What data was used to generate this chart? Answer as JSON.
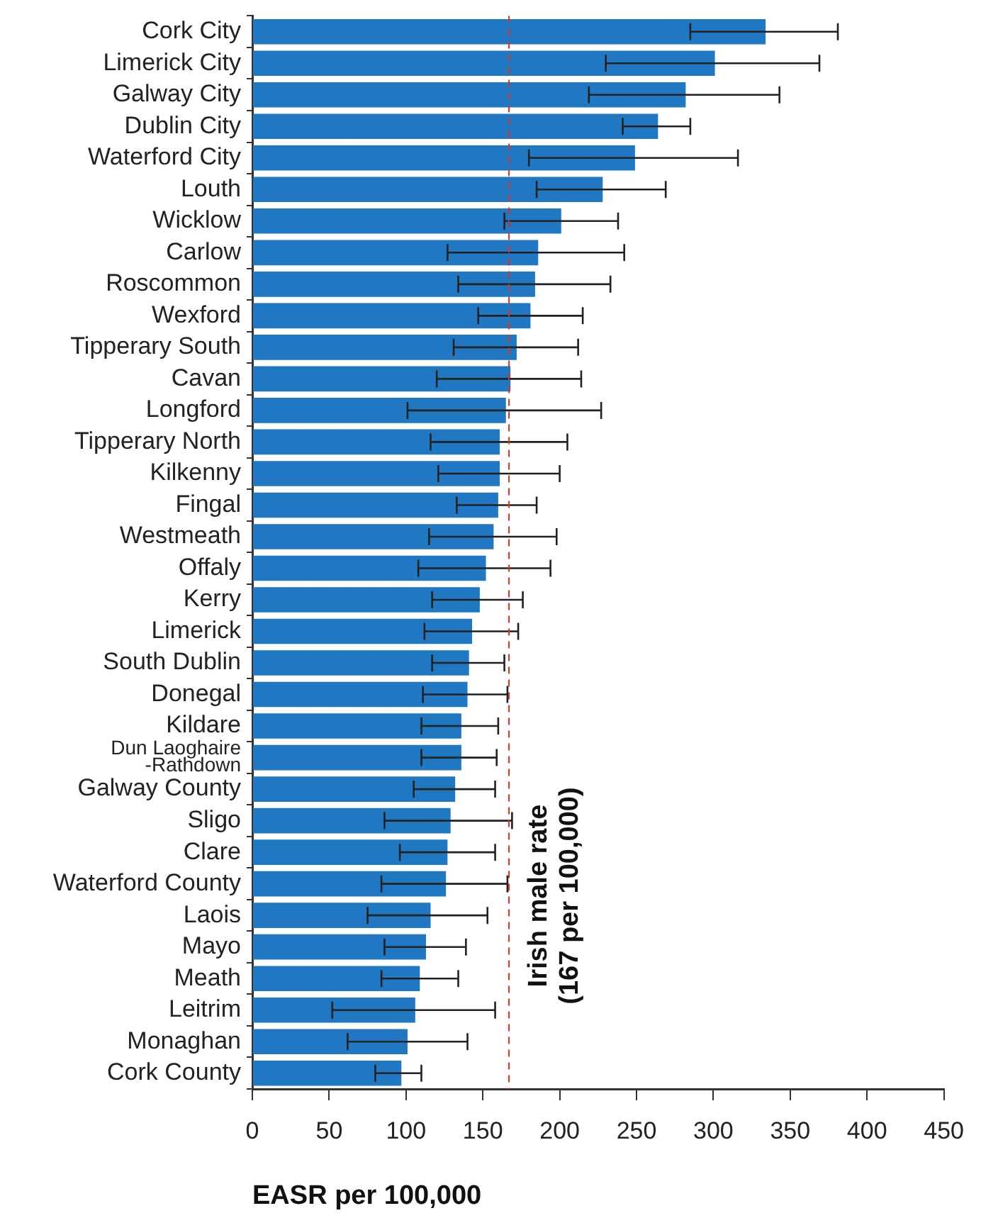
{
  "chart_data": {
    "type": "bar",
    "orientation": "horizontal",
    "xlabel": "EASR per 100,000",
    "categories": [
      "Cork City",
      "Limerick City",
      "Galway City",
      "Dublin City",
      "Waterford City",
      "Louth",
      "Wicklow",
      "Carlow",
      "Roscommon",
      "Wexford",
      "Tipperary South",
      "Cavan",
      "Longford",
      "Tipperary North",
      "Kilkenny",
      "Fingal",
      "Westmeath",
      "Offaly",
      "Kerry",
      "Limerick",
      "South Dublin",
      "Donegal",
      "Kildare",
      "Dun Laoghaire\n-Rathdown",
      "Galway County",
      "Sligo",
      "Clare",
      "Waterford County",
      "Laois",
      "Mayo",
      "Meath",
      "Leitrim",
      "Monaghan",
      "Cork County"
    ],
    "values": [
      334,
      301,
      282,
      264,
      249,
      228,
      201,
      186,
      184,
      181,
      172,
      168,
      165,
      161,
      161,
      160,
      157,
      152,
      148,
      143,
      141,
      140,
      136,
      136,
      132,
      129,
      127,
      126,
      116,
      113,
      109,
      106,
      101,
      97
    ],
    "errors": [
      [
        285,
        381
      ],
      [
        230,
        369
      ],
      [
        219,
        343
      ],
      [
        241,
        285
      ],
      [
        180,
        316
      ],
      [
        185,
        269
      ],
      [
        164,
        238
      ],
      [
        127,
        242
      ],
      [
        134,
        233
      ],
      [
        147,
        215
      ],
      [
        131,
        212
      ],
      [
        120,
        214
      ],
      [
        101,
        227
      ],
      [
        116,
        205
      ],
      [
        121,
        200
      ],
      [
        133,
        185
      ],
      [
        115,
        198
      ],
      [
        108,
        194
      ],
      [
        117,
        176
      ],
      [
        112,
        173
      ],
      [
        117,
        164
      ],
      [
        111,
        166
      ],
      [
        110,
        160
      ],
      [
        110,
        159
      ],
      [
        105,
        158
      ],
      [
        86,
        169
      ],
      [
        96,
        158
      ],
      [
        84,
        166
      ],
      [
        75,
        153
      ],
      [
        86,
        139
      ],
      [
        84,
        134
      ],
      [
        52,
        158
      ],
      [
        62,
        140
      ],
      [
        80,
        110
      ]
    ],
    "color": "#1f78c1",
    "xlim": [
      0,
      450
    ],
    "xticks": [
      0,
      50,
      100,
      150,
      200,
      250,
      300,
      350,
      400,
      450
    ],
    "grid": false,
    "ref_lines": [
      {
        "axis": "x",
        "value": 167,
        "label": "Irish male rate\n(167 per 100,000)",
        "color": "#e0301e",
        "line_style": "dashed"
      }
    ]
  }
}
